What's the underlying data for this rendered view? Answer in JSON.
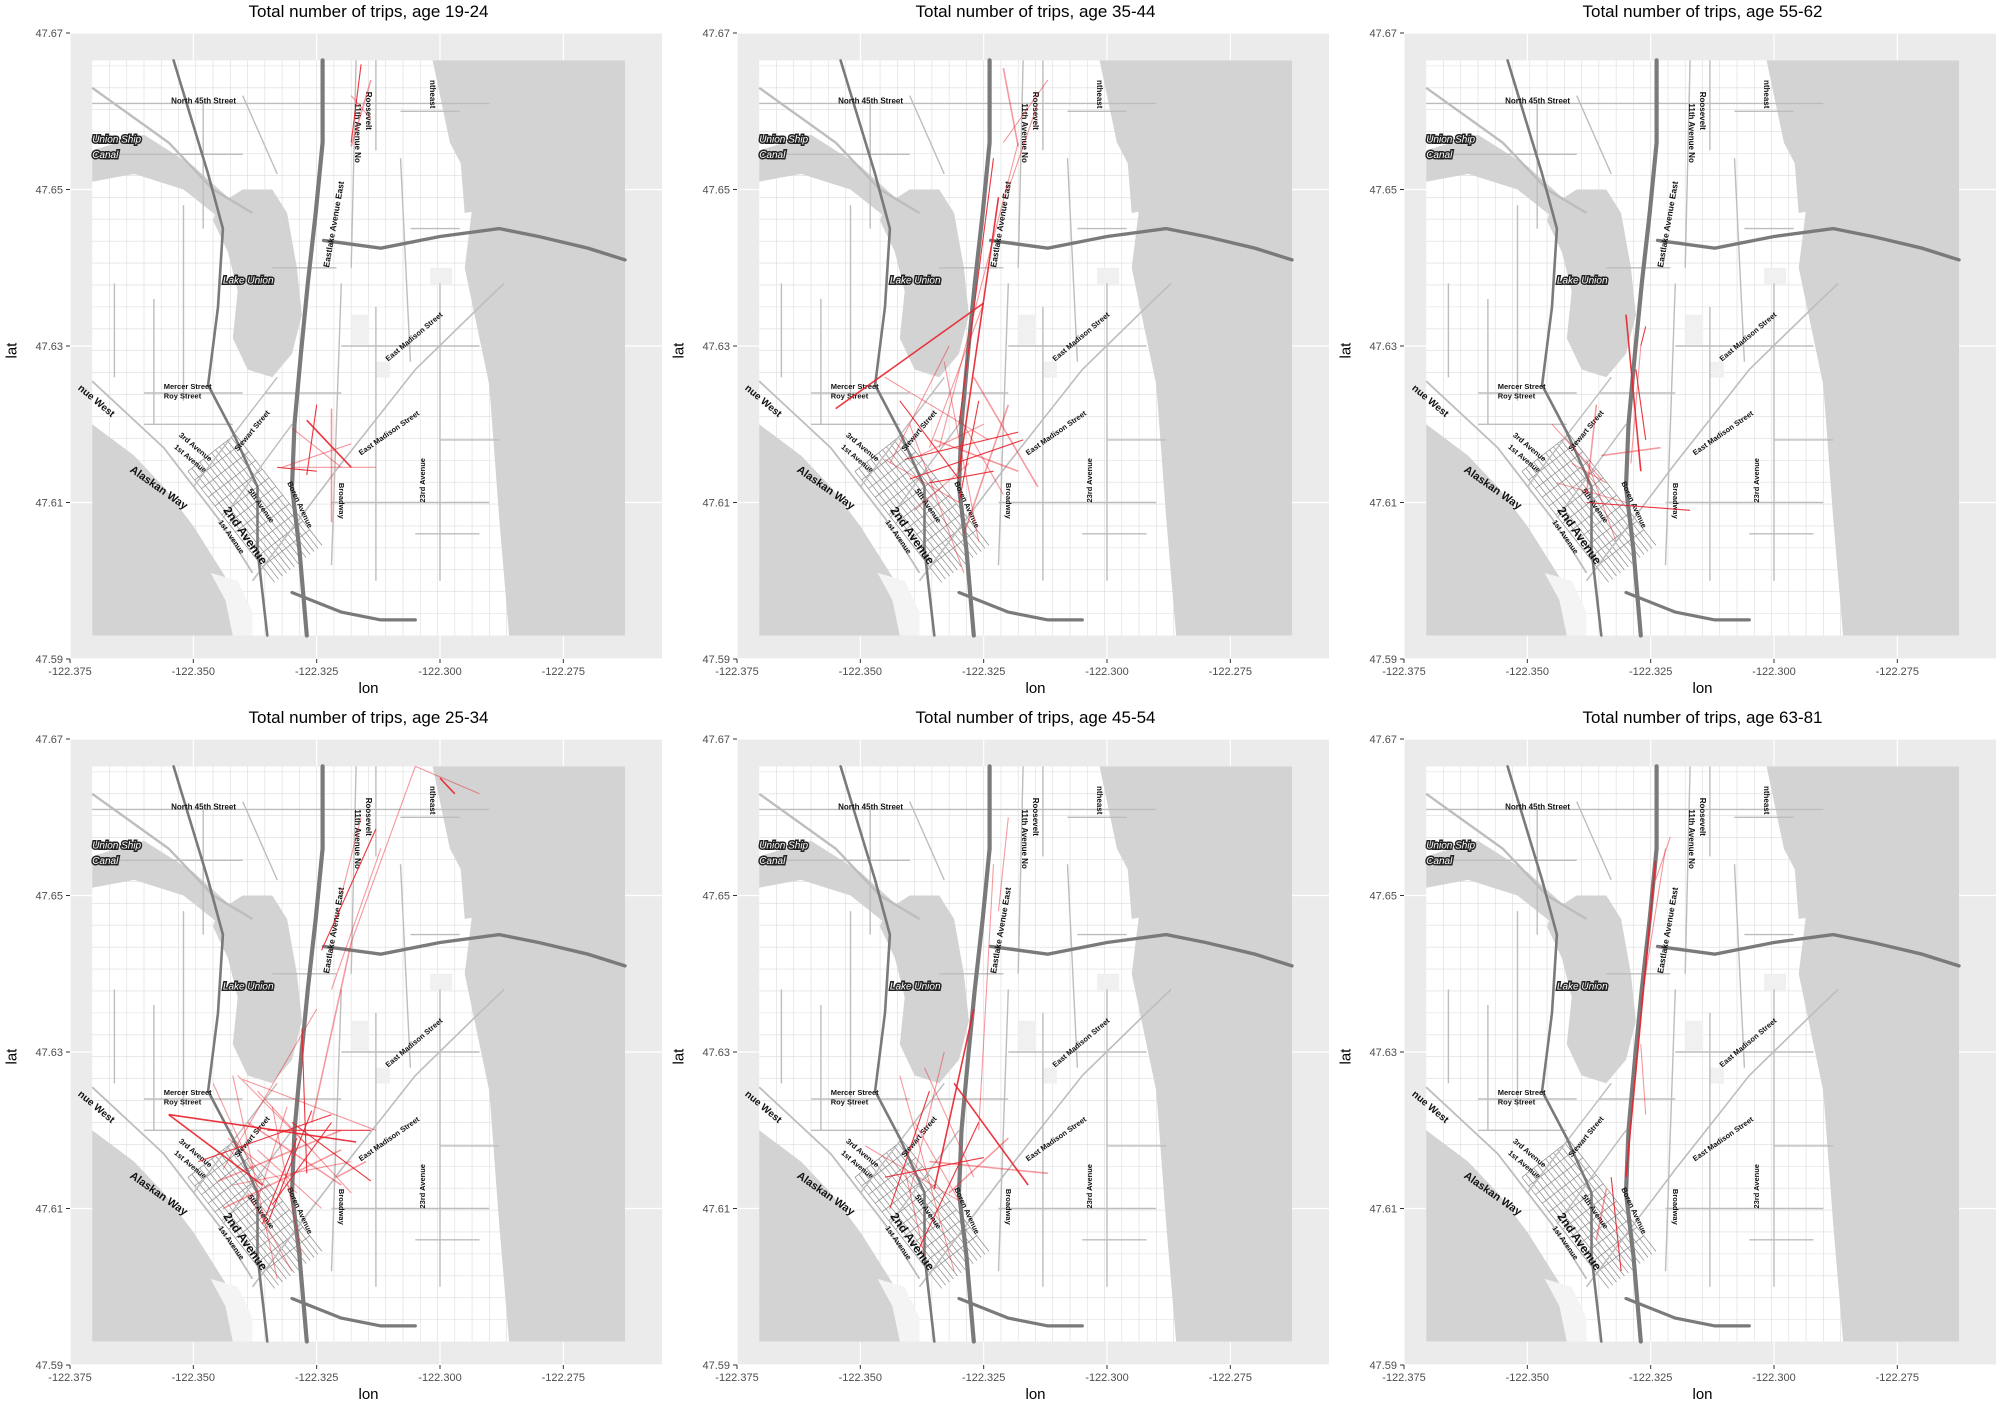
{
  "figure": {
    "x_axis_label": "lon",
    "y_axis_label": "lat",
    "x_ticks": [
      "-122.375",
      "-122.350",
      "-122.325",
      "-122.300",
      "-122.275"
    ],
    "y_ticks": [
      "47.59",
      "47.61",
      "47.63",
      "47.65",
      "47.67"
    ],
    "colors": {
      "panel_background": "#ebebeb",
      "grid": "#ffffff",
      "water": "#d3d3d3",
      "land": "#ffffff",
      "road": "#bdbdbd",
      "highway": "#7a7a7a",
      "trip_line": "#e8202a"
    },
    "map_labels": {
      "north_45th": "North 45th Street",
      "ave_11th": "11th Avenue No",
      "roosevelt": "Roosevelt",
      "eastlake": "Eastlake Avenue East",
      "lake_union": "Lake Union",
      "union_ship": "Union Ship",
      "canal": "Canal",
      "mercer": "Mercer Street",
      "roy": "Roy Street",
      "ave_west": "nue West",
      "alaskan": "Alaskan Way",
      "third_ave": "3rd Avenue",
      "first_ave": "1st Avenue",
      "second_ave": "2nd Avenue",
      "first_ave_b": "1st Avenue",
      "stewart": "Stewart Street",
      "fifth_ave": "5th Avenue",
      "boren": "Boren Avenue",
      "broadway": "Broadway",
      "east_madison": "East Madison Street",
      "ave_23rd": "23rd Avenue",
      "ravenna": "ntheast"
    }
  },
  "chart_data": [
    {
      "type": "map-segments",
      "title": "Total number of trips, age 19-24",
      "xlabel": "lon",
      "ylabel": "lat",
      "xlim": [
        -122.375,
        -122.255
      ],
      "ylim": [
        47.59,
        47.67
      ],
      "segments": [
        [
          -122.327,
          47.6205,
          -122.318,
          47.6145
        ],
        [
          -122.33,
          47.6145,
          -122.313,
          47.6145
        ],
        [
          -122.332,
          47.6145,
          -122.318,
          47.6175
        ],
        [
          -122.327,
          47.6135,
          -122.325,
          47.6225
        ],
        [
          -122.322,
          47.6075,
          -122.322,
          47.622
        ],
        [
          -122.33,
          47.6195,
          -122.32,
          47.6145
        ],
        [
          -122.316,
          47.666,
          -122.318,
          47.656
        ],
        [
          -122.318,
          47.662,
          -122.314,
          47.659
        ],
        [
          -122.314,
          47.664,
          -122.318,
          47.6555
        ],
        [
          -122.333,
          47.6145,
          -122.325,
          47.614
        ]
      ]
    },
    {
      "type": "map-segments",
      "title": "Total number of trips, age 35-44",
      "xlabel": "lon",
      "ylabel": "lat",
      "xlim": [
        -122.375,
        -122.255
      ],
      "ylim": [
        47.59,
        47.67
      ],
      "segments": [
        [
          -122.355,
          47.622,
          -122.325,
          47.6355
        ],
        [
          -122.325,
          47.6355,
          -122.336,
          47.617
        ],
        [
          -122.34,
          47.62,
          -122.329,
          47.601
        ],
        [
          -122.326,
          47.623,
          -122.33,
          47.61
        ],
        [
          -122.335,
          47.618,
          -122.318,
          47.614
        ],
        [
          -122.332,
          47.63,
          -122.344,
          47.615
        ],
        [
          -122.336,
          47.6125,
          -122.323,
          47.614
        ],
        [
          -122.345,
          47.6155,
          -122.33,
          47.61
        ],
        [
          -122.32,
          47.6225,
          -122.329,
          47.606
        ],
        [
          -122.318,
          47.619,
          -122.341,
          47.6155
        ],
        [
          -122.345,
          47.626,
          -122.324,
          47.618
        ],
        [
          -122.339,
          47.609,
          -122.328,
          47.615
        ],
        [
          -122.322,
          47.649,
          -122.33,
          47.614
        ],
        [
          -122.318,
          47.656,
          -122.334,
          47.617
        ],
        [
          -122.314,
          47.661,
          -122.32,
          47.65
        ],
        [
          -122.323,
          47.654,
          -122.33,
          47.62
        ],
        [
          -122.321,
          47.6655,
          -122.318,
          47.6555
        ],
        [
          -122.312,
          47.664,
          -122.321,
          47.656
        ],
        [
          -122.34,
          47.613,
          -122.317,
          47.618
        ],
        [
          -122.333,
          47.628,
          -122.326,
          47.605
        ],
        [
          -122.327,
          47.626,
          -122.314,
          47.612
        ],
        [
          -122.342,
          47.623,
          -122.33,
          47.613
        ],
        [
          -122.338,
          47.616,
          -122.325,
          47.62
        ],
        [
          -122.33,
          47.621,
          -122.321,
          47.611
        ]
      ]
    },
    {
      "type": "map-segments",
      "title": "Total number of trips, age 55-62",
      "xlabel": "lon",
      "ylabel": "lat",
      "xlim": [
        -122.375,
        -122.255
      ],
      "ylim": [
        47.59,
        47.67
      ],
      "segments": [
        [
          -122.33,
          47.634,
          -122.327,
          47.614
        ],
        [
          -122.327,
          47.63,
          -122.329,
          47.615
        ],
        [
          -122.344,
          47.6125,
          -122.33,
          47.61
        ],
        [
          -122.338,
          47.61,
          -122.317,
          47.609
        ],
        [
          -122.335,
          47.616,
          -122.323,
          47.617
        ],
        [
          -122.338,
          47.6155,
          -122.332,
          47.605
        ],
        [
          -122.328,
          47.627,
          -122.326,
          47.618
        ],
        [
          -122.341,
          47.615,
          -122.334,
          47.6125
        ],
        [
          -122.336,
          47.6225,
          -122.338,
          47.611
        ],
        [
          -122.326,
          47.6325,
          -122.327,
          47.63
        ],
        [
          -122.345,
          47.62,
          -122.335,
          47.613
        ]
      ]
    },
    {
      "type": "map-segments",
      "title": "Total number of trips, age 25-34",
      "xlabel": "lon",
      "ylabel": "lat",
      "xlim": [
        -122.375,
        -122.255
      ],
      "ylim": [
        47.59,
        47.67
      ],
      "segments": [
        [
          -122.355,
          47.622,
          -122.317,
          47.6185
        ],
        [
          -122.342,
          47.627,
          -122.333,
          47.601
        ],
        [
          -122.325,
          47.6355,
          -122.344,
          47.615
        ],
        [
          -122.326,
          47.6225,
          -122.335,
          47.608
        ],
        [
          -122.339,
          47.621,
          -122.32,
          47.613
        ],
        [
          -122.34,
          47.6265,
          -122.313,
          47.62
        ],
        [
          -122.349,
          47.616,
          -122.322,
          47.622
        ],
        [
          -122.334,
          47.623,
          -122.328,
          47.604
        ],
        [
          -122.32,
          47.62,
          -122.345,
          47.6135
        ],
        [
          -122.33,
          47.621,
          -122.314,
          47.6135
        ],
        [
          -122.342,
          47.613,
          -122.318,
          47.616
        ],
        [
          -122.337,
          47.6175,
          -122.324,
          47.61
        ],
        [
          -122.355,
          47.622,
          -122.336,
          47.613
        ],
        [
          -122.341,
          47.627,
          -122.326,
          47.6175
        ],
        [
          -122.331,
          47.623,
          -122.337,
          47.611
        ],
        [
          -122.322,
          47.621,
          -122.334,
          47.6105
        ],
        [
          -122.344,
          47.61,
          -122.32,
          47.6175
        ],
        [
          -122.339,
          47.612,
          -122.33,
          47.602
        ],
        [
          -122.335,
          47.62,
          -122.314,
          47.62
        ],
        [
          -122.346,
          47.626,
          -122.338,
          47.615
        ],
        [
          -122.321,
          47.614,
          -122.315,
          47.616
        ],
        [
          -122.329,
          47.619,
          -122.336,
          47.608
        ],
        [
          -122.337,
          47.625,
          -122.318,
          47.612
        ],
        [
          -122.343,
          47.619,
          -122.329,
          47.612
        ],
        [
          -122.3,
          47.665,
          -122.297,
          47.663
        ],
        [
          -122.305,
          47.6665,
          -122.292,
          47.663
        ],
        [
          -122.305,
          47.6665,
          -122.318,
          47.644
        ],
        [
          -122.313,
          47.6585,
          -122.324,
          47.643
        ],
        [
          -122.318,
          47.644,
          -122.326,
          47.621
        ],
        [
          -122.312,
          47.656,
          -122.322,
          47.638
        ],
        [
          -122.328,
          47.633,
          -122.327,
          47.6145
        ],
        [
          -122.316,
          47.66,
          -122.32,
          47.65
        ]
      ]
    },
    {
      "type": "map-segments",
      "title": "Total number of trips, age 45-54",
      "xlabel": "lon",
      "ylabel": "lat",
      "xlim": [
        -122.375,
        -122.255
      ],
      "ylim": [
        47.59,
        47.67
      ],
      "segments": [
        [
          -122.327,
          47.6355,
          -122.335,
          47.6125
        ],
        [
          -122.333,
          47.63,
          -122.34,
          47.612
        ],
        [
          -122.342,
          47.627,
          -122.331,
          47.602
        ],
        [
          -122.336,
          47.625,
          -122.344,
          47.61
        ],
        [
          -122.336,
          47.616,
          -122.312,
          47.6145
        ],
        [
          -122.339,
          47.621,
          -122.33,
          47.611
        ],
        [
          -122.345,
          47.614,
          -122.325,
          47.6165
        ],
        [
          -122.341,
          47.615,
          -122.337,
          47.604
        ],
        [
          -122.32,
          47.619,
          -122.332,
          47.612
        ],
        [
          -122.326,
          47.621,
          -122.338,
          47.605
        ],
        [
          -122.323,
          47.654,
          -122.326,
          47.62
        ],
        [
          -122.32,
          47.66,
          -122.322,
          47.648
        ],
        [
          -122.331,
          47.626,
          -122.316,
          47.613
        ],
        [
          -122.349,
          47.618,
          -122.33,
          47.611
        ],
        [
          -122.337,
          47.628,
          -122.327,
          47.614
        ]
      ]
    },
    {
      "type": "map-segments",
      "title": "Total number of trips, age 63-81",
      "xlabel": "lon",
      "ylabel": "lat",
      "xlim": [
        -122.375,
        -122.255
      ],
      "ylim": [
        47.59,
        47.67
      ],
      "segments": [
        [
          -122.324,
          47.6545,
          -122.33,
          47.614
        ],
        [
          -122.322,
          47.656,
          -122.327,
          47.636
        ],
        [
          -122.321,
          47.6575,
          -122.324,
          47.652
        ],
        [
          -122.333,
          47.614,
          -122.331,
          47.602
        ],
        [
          -122.334,
          47.6125,
          -122.336,
          47.606
        ],
        [
          -122.327,
          47.631,
          -122.326,
          47.622
        ]
      ]
    }
  ]
}
